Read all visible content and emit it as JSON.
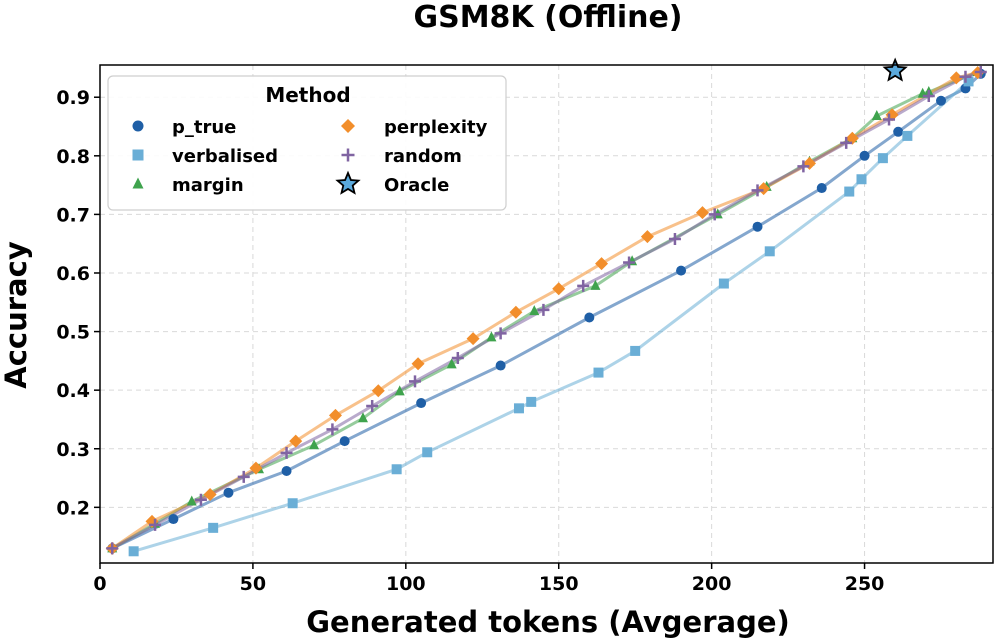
{
  "chart_data": {
    "type": "line",
    "title": "GSM8K (Offline)",
    "xlabel": "Generated tokens (Avgerage)",
    "ylabel": "Accuracy",
    "xlim": [
      0,
      292
    ],
    "ylim": [
      0.105,
      0.955
    ],
    "xticks": [
      0,
      50,
      100,
      150,
      200,
      250
    ],
    "yticks": [
      0.2,
      0.3,
      0.4,
      0.5,
      0.6,
      0.7,
      0.8,
      0.9
    ],
    "grid": true,
    "legend": {
      "title": "Method",
      "placement": "top-left",
      "columns": 2
    },
    "series": [
      {
        "name": "p_true",
        "color": "#1f5fa6",
        "marker": "circle",
        "x": [
          4,
          24,
          42,
          61,
          80,
          105,
          131,
          160,
          190,
          215,
          236,
          250,
          261,
          275,
          283,
          288
        ],
        "y": [
          0.13,
          0.18,
          0.225,
          0.262,
          0.313,
          0.378,
          0.442,
          0.524,
          0.604,
          0.679,
          0.745,
          0.8,
          0.841,
          0.894,
          0.915,
          0.94
        ]
      },
      {
        "name": "verbalised",
        "color": "#6aaed6",
        "marker": "square",
        "x": [
          11,
          37,
          63,
          97,
          107,
          137,
          141,
          163,
          175,
          204,
          219,
          245,
          249,
          256,
          264,
          284
        ],
        "y": [
          0.125,
          0.165,
          0.207,
          0.265,
          0.294,
          0.369,
          0.38,
          0.43,
          0.467,
          0.582,
          0.637,
          0.739,
          0.76,
          0.796,
          0.834,
          0.927
        ]
      },
      {
        "name": "margin",
        "color": "#3fa34d",
        "marker": "triangle",
        "x": [
          4,
          18,
          30,
          52,
          70,
          86,
          98,
          115,
          128,
          142,
          162,
          174,
          202,
          218,
          232,
          246,
          254,
          269,
          271,
          287
        ],
        "y": [
          0.13,
          0.172,
          0.21,
          0.265,
          0.306,
          0.352,
          0.398,
          0.444,
          0.49,
          0.535,
          0.578,
          0.62,
          0.7,
          0.747,
          0.79,
          0.83,
          0.868,
          0.906,
          0.909,
          0.943
        ]
      },
      {
        "name": "perplexity",
        "color": "#f28e2b",
        "marker": "diamond",
        "x": [
          4,
          17,
          36,
          51,
          64,
          77,
          91,
          104,
          122,
          136,
          150,
          164,
          179,
          197,
          217,
          232,
          246,
          259,
          280,
          287
        ],
        "y": [
          0.13,
          0.176,
          0.222,
          0.267,
          0.313,
          0.357,
          0.399,
          0.445,
          0.488,
          0.533,
          0.573,
          0.616,
          0.662,
          0.703,
          0.744,
          0.787,
          0.83,
          0.87,
          0.933,
          0.942
        ]
      },
      {
        "name": "random",
        "color": "#8064a2",
        "marker": "plus",
        "x": [
          4,
          18,
          33,
          47,
          61,
          76,
          89,
          103,
          117,
          131,
          145,
          158,
          173,
          188,
          201,
          215,
          230,
          244,
          258,
          271,
          283,
          288
        ],
        "y": [
          0.13,
          0.17,
          0.213,
          0.252,
          0.293,
          0.333,
          0.373,
          0.415,
          0.455,
          0.497,
          0.537,
          0.578,
          0.618,
          0.658,
          0.7,
          0.741,
          0.782,
          0.822,
          0.862,
          0.902,
          0.935,
          0.943
        ]
      }
    ],
    "oracle": {
      "name": "Oracle",
      "color": "#5aa9dc",
      "marker": "star",
      "x": 260,
      "y": 0.945
    }
  }
}
